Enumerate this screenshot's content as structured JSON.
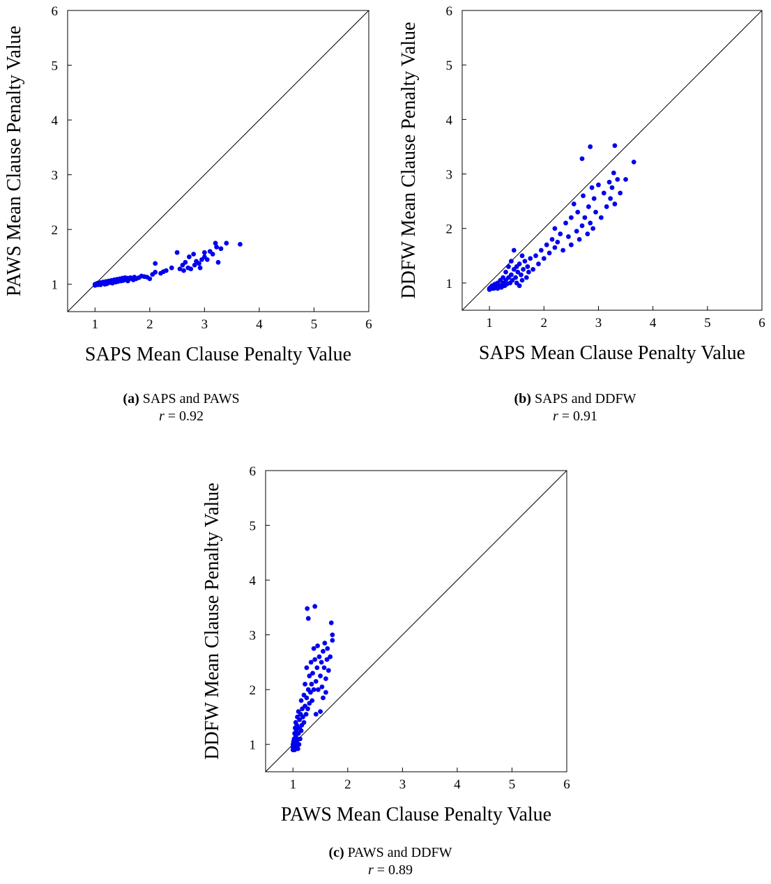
{
  "charts": [
    {
      "id": "a",
      "caption": {
        "tag": "(a)",
        "title": "SAPS and PAWS",
        "r_label": "r",
        "r_value": "= 0.92"
      },
      "xlabel": "SAPS Mean Clause Penalty Value",
      "ylabel": "PAWS Mean Clause Penalty Value"
    },
    {
      "id": "b",
      "caption": {
        "tag": "(b)",
        "title": "SAPS and DDFW",
        "r_label": "r",
        "r_value": "= 0.91"
      },
      "xlabel": "SAPS Mean Clause Penalty Value",
      "ylabel": "DDFW Mean Clause Penalty Value"
    },
    {
      "id": "c",
      "caption": {
        "tag": "(c)",
        "title": "PAWS and DDFW",
        "r_label": "r",
        "r_value": "= 0.89"
      },
      "xlabel": "PAWS Mean Clause Penalty Value",
      "ylabel": "DDFW Mean Clause Penalty Value"
    }
  ],
  "colors": {
    "points": "#0000ee",
    "axes": "#000000"
  },
  "chart_data": [
    {
      "type": "scatter",
      "xlabel": "SAPS Mean Clause Penalty Value",
      "ylabel": "PAWS Mean Clause Penalty Value",
      "xlim": [
        0.5,
        6
      ],
      "ylim": [
        0.5,
        6
      ],
      "xticks": [
        1,
        2,
        3,
        4,
        5,
        6
      ],
      "yticks": [
        1,
        2,
        3,
        4,
        5,
        6
      ],
      "reference_line": "y = x",
      "correlation": 0.92,
      "points": [
        [
          1.0,
          1.0
        ],
        [
          1.0,
          0.98
        ],
        [
          1.02,
          1.0
        ],
        [
          1.03,
          1.01
        ],
        [
          1.05,
          0.99
        ],
        [
          1.05,
          1.02
        ],
        [
          1.08,
          1.0
        ],
        [
          1.1,
          1.03
        ],
        [
          1.1,
          0.99
        ],
        [
          1.12,
          1.01
        ],
        [
          1.15,
          1.02
        ],
        [
          1.15,
          1.04
        ],
        [
          1.18,
          1.0
        ],
        [
          1.2,
          1.03
        ],
        [
          1.2,
          1.05
        ],
        [
          1.22,
          1.01
        ],
        [
          1.25,
          1.04
        ],
        [
          1.25,
          1.06
        ],
        [
          1.28,
          1.03
        ],
        [
          1.3,
          1.05
        ],
        [
          1.3,
          1.07
        ],
        [
          1.32,
          1.02
        ],
        [
          1.35,
          1.06
        ],
        [
          1.35,
          1.08
        ],
        [
          1.38,
          1.04
        ],
        [
          1.4,
          1.07
        ],
        [
          1.4,
          1.09
        ],
        [
          1.42,
          1.05
        ],
        [
          1.45,
          1.08
        ],
        [
          1.45,
          1.1
        ],
        [
          1.48,
          1.06
        ],
        [
          1.5,
          1.09
        ],
        [
          1.5,
          1.11
        ],
        [
          1.52,
          1.07
        ],
        [
          1.55,
          1.1
        ],
        [
          1.55,
          1.12
        ],
        [
          1.58,
          1.08
        ],
        [
          1.6,
          1.11
        ],
        [
          1.6,
          1.06
        ],
        [
          1.62,
          1.09
        ],
        [
          1.65,
          1.12
        ],
        [
          1.68,
          1.1
        ],
        [
          1.7,
          1.08
        ],
        [
          1.72,
          1.13
        ],
        [
          1.75,
          1.1
        ],
        [
          1.8,
          1.12
        ],
        [
          1.85,
          1.15
        ],
        [
          1.9,
          1.14
        ],
        [
          1.95,
          1.13
        ],
        [
          2.0,
          1.1
        ],
        [
          2.05,
          1.18
        ],
        [
          2.1,
          1.22
        ],
        [
          2.1,
          1.38
        ],
        [
          2.2,
          1.2
        ],
        [
          2.25,
          1.23
        ],
        [
          2.3,
          1.25
        ],
        [
          2.4,
          1.3
        ],
        [
          2.5,
          1.58
        ],
        [
          2.55,
          1.28
        ],
        [
          2.6,
          1.35
        ],
        [
          2.62,
          1.25
        ],
        [
          2.65,
          1.4
        ],
        [
          2.7,
          1.3
        ],
        [
          2.72,
          1.5
        ],
        [
          2.75,
          1.28
        ],
        [
          2.8,
          1.55
        ],
        [
          2.82,
          1.35
        ],
        [
          2.85,
          1.42
        ],
        [
          2.9,
          1.38
        ],
        [
          2.92,
          1.3
        ],
        [
          2.95,
          1.45
        ],
        [
          3.0,
          1.58
        ],
        [
          3.0,
          1.5
        ],
        [
          3.05,
          1.45
        ],
        [
          3.1,
          1.6
        ],
        [
          3.15,
          1.55
        ],
        [
          3.2,
          1.75
        ],
        [
          3.22,
          1.68
        ],
        [
          3.25,
          1.4
        ],
        [
          3.3,
          1.65
        ],
        [
          3.4,
          1.75
        ],
        [
          3.65,
          1.73
        ]
      ]
    },
    {
      "type": "scatter",
      "xlabel": "SAPS Mean Clause Penalty Value",
      "ylabel": "DDFW Mean Clause Penalty Value",
      "xlim": [
        0.5,
        6
      ],
      "ylim": [
        0.5,
        6
      ],
      "xticks": [
        1,
        2,
        3,
        4,
        5,
        6
      ],
      "yticks": [
        1,
        2,
        3,
        4,
        5,
        6
      ],
      "reference_line": "y = x",
      "correlation": 0.91,
      "points": [
        [
          1.0,
          0.9
        ],
        [
          1.0,
          0.88
        ],
        [
          1.02,
          0.92
        ],
        [
          1.05,
          0.9
        ],
        [
          1.05,
          0.95
        ],
        [
          1.08,
          0.9
        ],
        [
          1.1,
          0.92
        ],
        [
          1.1,
          0.98
        ],
        [
          1.12,
          0.95
        ],
        [
          1.15,
          0.9
        ],
        [
          1.15,
          1.0
        ],
        [
          1.18,
          0.93
        ],
        [
          1.2,
          0.95
        ],
        [
          1.2,
          1.05
        ],
        [
          1.22,
          0.92
        ],
        [
          1.25,
          1.0
        ],
        [
          1.25,
          1.1
        ],
        [
          1.28,
          0.95
        ],
        [
          1.3,
          1.05
        ],
        [
          1.3,
          1.2
        ],
        [
          1.32,
          0.98
        ],
        [
          1.35,
          1.1
        ],
        [
          1.35,
          1.3
        ],
        [
          1.38,
          1.0
        ],
        [
          1.4,
          1.15
        ],
        [
          1.4,
          1.4
        ],
        [
          1.42,
          1.05
        ],
        [
          1.45,
          1.25
        ],
        [
          1.45,
          1.6
        ],
        [
          1.48,
          1.1
        ],
        [
          1.5,
          1.3
        ],
        [
          1.5,
          1.0
        ],
        [
          1.52,
          1.2
        ],
        [
          1.55,
          1.35
        ],
        [
          1.55,
          0.95
        ],
        [
          1.58,
          1.15
        ],
        [
          1.6,
          1.5
        ],
        [
          1.6,
          1.05
        ],
        [
          1.62,
          1.25
        ],
        [
          1.65,
          1.4
        ],
        [
          1.68,
          1.1
        ],
        [
          1.7,
          1.3
        ],
        [
          1.72,
          1.2
        ],
        [
          1.75,
          1.45
        ],
        [
          1.8,
          1.25
        ],
        [
          1.85,
          1.5
        ],
        [
          1.9,
          1.35
        ],
        [
          1.95,
          1.6
        ],
        [
          2.0,
          1.45
        ],
        [
          2.05,
          1.7
        ],
        [
          2.1,
          1.55
        ],
        [
          2.15,
          1.8
        ],
        [
          2.2,
          1.65
        ],
        [
          2.2,
          2.0
        ],
        [
          2.25,
          1.75
        ],
        [
          2.3,
          1.9
        ],
        [
          2.35,
          1.6
        ],
        [
          2.4,
          2.1
        ],
        [
          2.45,
          1.85
        ],
        [
          2.5,
          2.2
        ],
        [
          2.5,
          1.7
        ],
        [
          2.55,
          2.45
        ],
        [
          2.6,
          1.95
        ],
        [
          2.62,
          2.3
        ],
        [
          2.65,
          1.8
        ],
        [
          2.7,
          2.05
        ],
        [
          2.7,
          3.28
        ],
        [
          2.72,
          2.6
        ],
        [
          2.75,
          2.2
        ],
        [
          2.8,
          1.9
        ],
        [
          2.82,
          2.4
        ],
        [
          2.85,
          3.5
        ],
        [
          2.85,
          2.1
        ],
        [
          2.88,
          2.75
        ],
        [
          2.9,
          2.0
        ],
        [
          2.92,
          2.55
        ],
        [
          2.95,
          2.3
        ],
        [
          3.0,
          2.8
        ],
        [
          3.05,
          2.2
        ],
        [
          3.1,
          2.65
        ],
        [
          3.15,
          2.4
        ],
        [
          3.2,
          2.85
        ],
        [
          3.22,
          2.55
        ],
        [
          3.25,
          2.75
        ],
        [
          3.28,
          3.02
        ],
        [
          3.3,
          3.52
        ],
        [
          3.3,
          2.45
        ],
        [
          3.35,
          2.9
        ],
        [
          3.4,
          2.65
        ],
        [
          3.5,
          2.9
        ],
        [
          3.65,
          3.22
        ]
      ]
    },
    {
      "type": "scatter",
      "xlabel": "PAWS Mean Clause Penalty Value",
      "ylabel": "DDFW Mean Clause Penalty Value",
      "xlim": [
        0.5,
        6
      ],
      "ylim": [
        0.5,
        6
      ],
      "xticks": [
        1,
        2,
        3,
        4,
        5,
        6
      ],
      "yticks": [
        1,
        2,
        3,
        4,
        5,
        6
      ],
      "reference_line": "y = x",
      "correlation": 0.89,
      "points": [
        [
          1.0,
          0.9
        ],
        [
          1.0,
          0.95
        ],
        [
          1.0,
          1.0
        ],
        [
          1.01,
          1.05
        ],
        [
          1.01,
          0.92
        ],
        [
          1.02,
          1.1
        ],
        [
          1.02,
          0.98
        ],
        [
          1.03,
          1.2
        ],
        [
          1.03,
          0.9
        ],
        [
          1.04,
          1.3
        ],
        [
          1.04,
          1.0
        ],
        [
          1.05,
          1.15
        ],
        [
          1.05,
          1.4
        ],
        [
          1.06,
          0.95
        ],
        [
          1.06,
          1.25
        ],
        [
          1.07,
          1.05
        ],
        [
          1.07,
          1.35
        ],
        [
          1.08,
          1.5
        ],
        [
          1.08,
          1.1
        ],
        [
          1.09,
          0.92
        ],
        [
          1.1,
          1.2
        ],
        [
          1.1,
          1.6
        ],
        [
          1.11,
          1.0
        ],
        [
          1.12,
          1.3
        ],
        [
          1.12,
          1.45
        ],
        [
          1.13,
          1.1
        ],
        [
          1.14,
          1.55
        ],
        [
          1.15,
          1.25
        ],
        [
          1.15,
          1.8
        ],
        [
          1.16,
          1.35
        ],
        [
          1.17,
          1.65
        ],
        [
          1.18,
          1.5
        ],
        [
          1.2,
          1.9
        ],
        [
          1.2,
          1.4
        ],
        [
          1.22,
          1.7
        ],
        [
          1.22,
          2.1
        ],
        [
          1.24,
          1.55
        ],
        [
          1.25,
          1.85
        ],
        [
          1.25,
          2.4
        ],
        [
          1.26,
          3.48
        ],
        [
          1.27,
          1.65
        ],
        [
          1.28,
          2.0
        ],
        [
          1.28,
          3.3
        ],
        [
          1.3,
          2.25
        ],
        [
          1.3,
          1.75
        ],
        [
          1.32,
          1.95
        ],
        [
          1.33,
          2.5
        ],
        [
          1.34,
          2.1
        ],
        [
          1.35,
          1.8
        ],
        [
          1.36,
          2.3
        ],
        [
          1.38,
          2.75
        ],
        [
          1.38,
          2.0
        ],
        [
          1.4,
          2.55
        ],
        [
          1.4,
          3.52
        ],
        [
          1.42,
          2.15
        ],
        [
          1.42,
          1.55
        ],
        [
          1.44,
          2.4
        ],
        [
          1.45,
          2.8
        ],
        [
          1.46,
          2.0
        ],
        [
          1.48,
          2.6
        ],
        [
          1.5,
          2.25
        ],
        [
          1.5,
          1.6
        ],
        [
          1.52,
          2.5
        ],
        [
          1.53,
          2.05
        ],
        [
          1.55,
          2.7
        ],
        [
          1.55,
          1.85
        ],
        [
          1.57,
          2.4
        ],
        [
          1.58,
          2.85
        ],
        [
          1.6,
          2.2
        ],
        [
          1.6,
          1.95
        ],
        [
          1.62,
          2.55
        ],
        [
          1.63,
          2.75
        ],
        [
          1.65,
          2.35
        ],
        [
          1.68,
          2.6
        ],
        [
          1.7,
          3.22
        ],
        [
          1.72,
          3.0
        ],
        [
          1.72,
          2.9
        ]
      ]
    }
  ]
}
